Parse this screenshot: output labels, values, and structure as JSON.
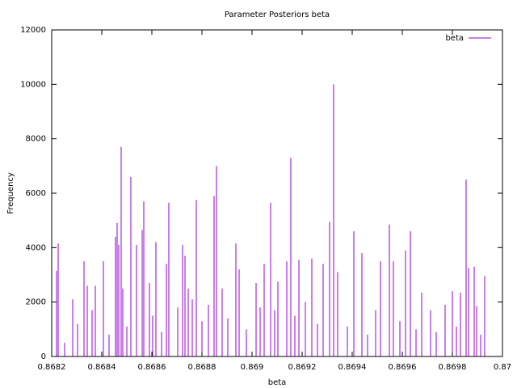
{
  "chart_data": {
    "type": "impulses",
    "title": "Parameter Posteriors beta",
    "xlabel": "beta",
    "ylabel": "Frequency",
    "series": [
      {
        "name": "beta",
        "color": "#9400d3",
        "x": [
          0.8682194,
          0.8682258,
          0.8682516,
          0.8682839,
          0.8683032,
          0.868329,
          0.8683419,
          0.8683613,
          0.8683742,
          0.8684065,
          0.868429,
          0.8684548,
          0.8684613,
          0.8684677,
          0.8684774,
          0.8684839,
          0.8685,
          0.8685161,
          0.8685387,
          0.8685613,
          0.8685677,
          0.8685903,
          0.8686032,
          0.8686161,
          0.8686387,
          0.868658,
          0.8686677,
          0.8687032,
          0.8687226,
          0.8687323,
          0.8687452,
          0.8687613,
          0.8687774,
          0.8688,
          0.8688258,
          0.8688484,
          0.8688581,
          0.8688806,
          0.8689032,
          0.8689355,
          0.8689484,
          0.8689774,
          0.8690161,
          0.8690323,
          0.8690484,
          0.8690742,
          0.8690903,
          0.8691032,
          0.8691387,
          0.8691548,
          0.869171,
          0.8691871,
          0.8692129,
          0.8692387,
          0.8692613,
          0.8692839,
          0.8693097,
          0.8693258,
          0.8693419,
          0.8693806,
          0.8694065,
          0.8694387,
          0.8694613,
          0.8694935,
          0.8695129,
          0.8695484,
          0.8695645,
          0.8695903,
          0.8696129,
          0.8696323,
          0.8696548,
          0.8696774,
          0.8697129,
          0.8697355,
          0.869771,
          0.8698,
          0.8698161,
          0.8698323,
          0.8698548,
          0.8698645,
          0.8698871,
          0.8698968,
          0.8699129,
          0.869929
        ],
        "values": [
          3150,
          4150,
          500,
          2100,
          1200,
          3500,
          2600,
          1700,
          2600,
          3500,
          800,
          4400,
          4900,
          4100,
          7700,
          2500,
          1100,
          6600,
          4100,
          4650,
          5700,
          2700,
          1500,
          4200,
          900,
          3400,
          5650,
          1800,
          4100,
          3700,
          2500,
          2100,
          5750,
          1300,
          1900,
          5900,
          7000,
          2500,
          1400,
          4150,
          3200,
          1000,
          2700,
          1800,
          3400,
          5650,
          1700,
          2750,
          3500,
          7300,
          1500,
          3550,
          2000,
          3600,
          1200,
          3400,
          4950,
          10000,
          3100,
          1100,
          4600,
          3800,
          800,
          1700,
          3500,
          4850,
          3500,
          1300,
          3900,
          4600,
          1000,
          2350,
          1700,
          900,
          1900,
          2400,
          1100,
          2350,
          6500,
          3250,
          3300,
          1850,
          800,
          2950
        ]
      }
    ],
    "xlim": [
      0.8682,
      0.87
    ],
    "xticks": [
      0.8682,
      0.8684,
      0.8686,
      0.8688,
      0.869,
      0.8692,
      0.8694,
      0.8696,
      0.8698,
      0.87
    ],
    "ylim": [
      0,
      12000
    ],
    "yticks": [
      0,
      2000,
      4000,
      6000,
      8000,
      10000,
      12000
    ],
    "legend": "top-right"
  }
}
